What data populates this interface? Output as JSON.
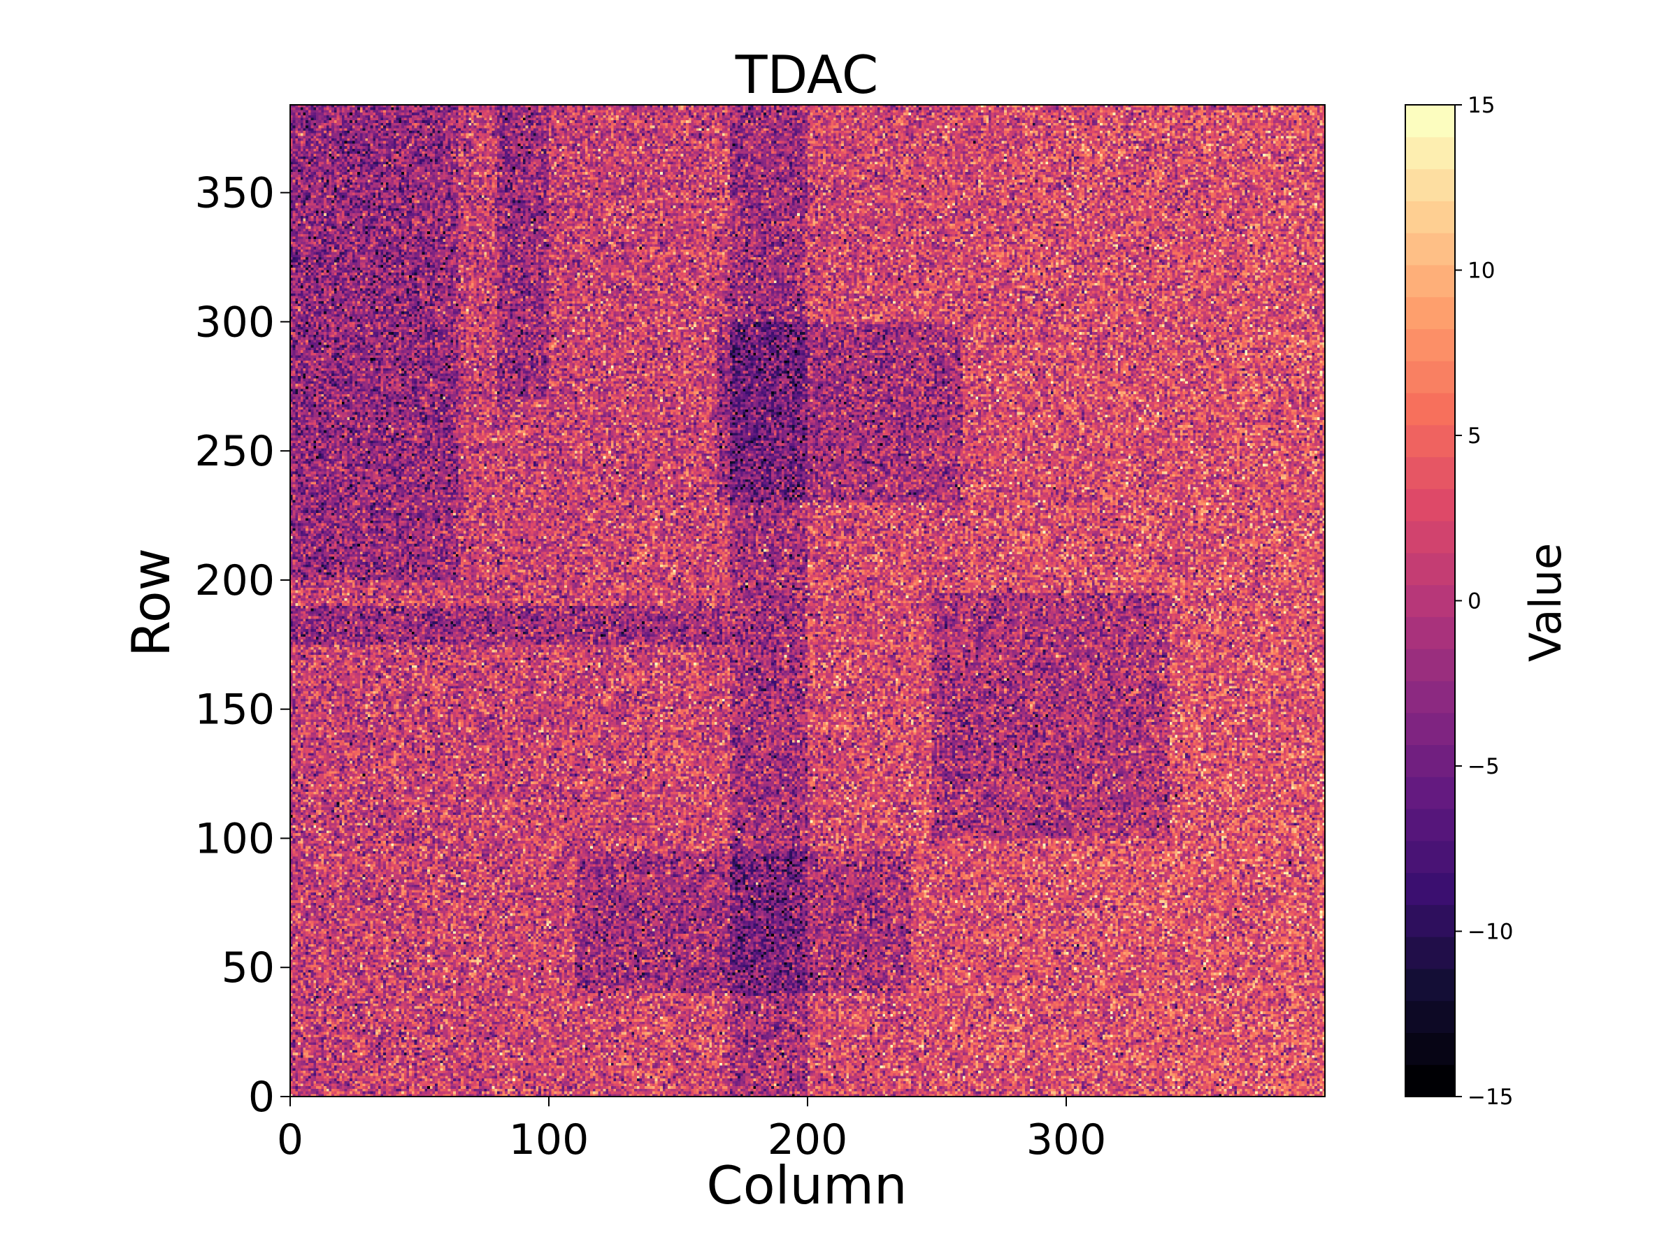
{
  "chart_data": {
    "type": "heatmap",
    "title": "TDAC",
    "xlabel": "Column",
    "ylabel": "Row",
    "xlim": [
      0,
      400
    ],
    "ylim": [
      0,
      384
    ],
    "x_ticks": [
      0,
      100,
      200,
      300
    ],
    "x_tick_labels": [
      "0",
      "100",
      "200",
      "300"
    ],
    "y_ticks": [
      0,
      50,
      100,
      150,
      200,
      250,
      300,
      350
    ],
    "y_tick_labels": [
      "0",
      "50",
      "100",
      "150",
      "200",
      "250",
      "300",
      "350"
    ],
    "colormap": "magma",
    "colorbar": {
      "label": "Value",
      "range": [
        -15,
        15
      ],
      "levels": 31,
      "ticks": [
        -15,
        -10,
        -5,
        0,
        5,
        10,
        15
      ],
      "tick_labels": [
        "−15",
        "−10",
        "−5",
        "0",
        "5",
        "10",
        "15"
      ]
    },
    "typical_value_range": [
      -15,
      15
    ],
    "dark_regions": [
      {
        "description": "band",
        "col_range": [
          0,
          170
        ],
        "row_range": [
          175,
          190
        ]
      },
      {
        "description": "block",
        "col_range": [
          110,
          240
        ],
        "row_range": [
          40,
          95
        ]
      },
      {
        "description": "block",
        "col_range": [
          248,
          340
        ],
        "row_range": [
          100,
          195
        ]
      },
      {
        "description": "block",
        "col_range": [
          165,
          260
        ],
        "row_range": [
          230,
          300
        ]
      },
      {
        "description": "column strip",
        "col_range": [
          80,
          100
        ],
        "row_range": [
          270,
          384
        ]
      },
      {
        "description": "column strip",
        "col_range": [
          170,
          200
        ],
        "row_range": [
          0,
          384
        ]
      },
      {
        "description": "region",
        "col_range": [
          0,
          65
        ],
        "row_range": [
          200,
          384
        ]
      }
    ]
  }
}
